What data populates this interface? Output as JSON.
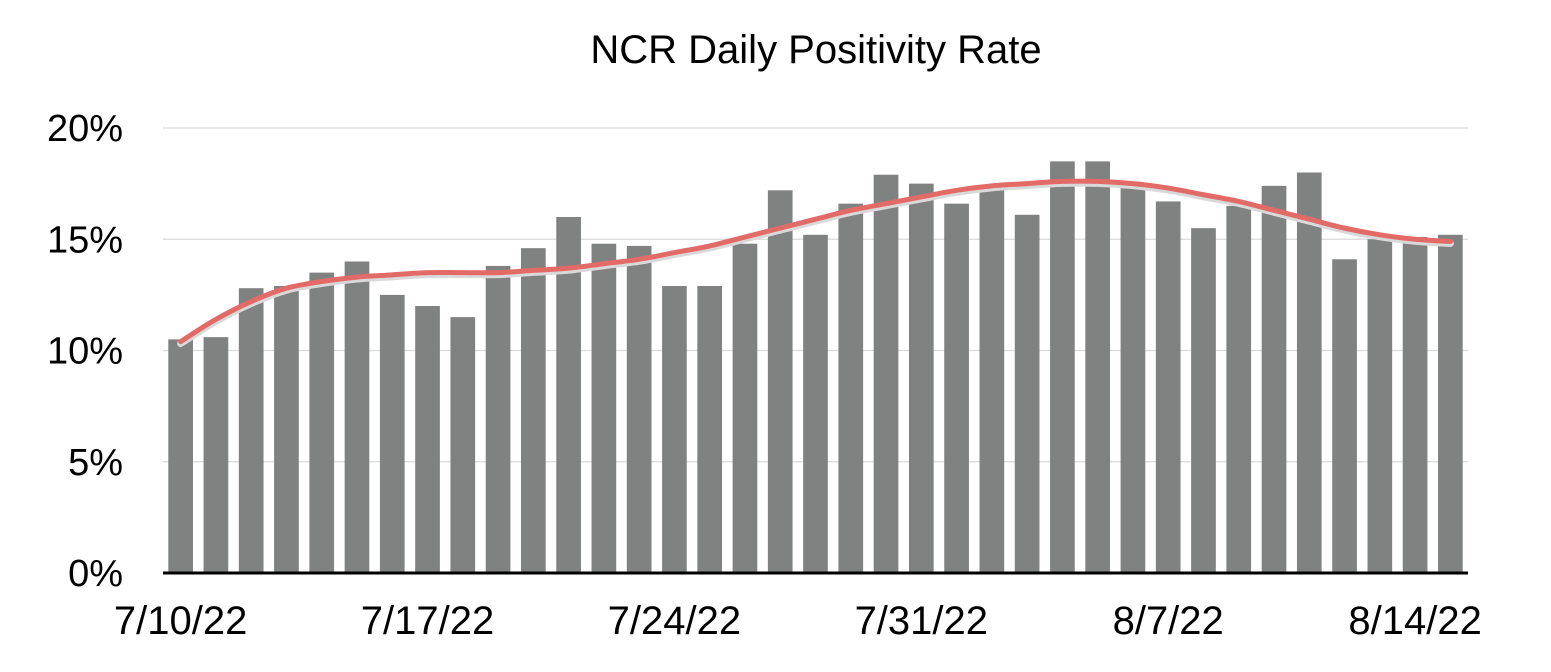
{
  "colors": {
    "bar": "#808281",
    "trend": "#e36b67",
    "grid": "#d9d9d9",
    "axis": "#000000",
    "text": "#000000"
  },
  "chart_data": {
    "type": "bar",
    "title": "NCR Daily Positivity Rate",
    "xlabel": "",
    "ylabel": "",
    "ylim": [
      0,
      20
    ],
    "y_unit": "%",
    "y_ticks": [
      "0%",
      "5%",
      "10%",
      "15%",
      "20%"
    ],
    "x_tick_labels": [
      "7/10/22",
      "7/17/22",
      "7/24/22",
      "7/31/22",
      "8/7/22",
      "8/14/22"
    ],
    "grid": true,
    "legend": "none",
    "categories": [
      "7/10/22",
      "7/11/22",
      "7/12/22",
      "7/13/22",
      "7/14/22",
      "7/15/22",
      "7/16/22",
      "7/17/22",
      "7/18/22",
      "7/19/22",
      "7/20/22",
      "7/21/22",
      "7/22/22",
      "7/23/22",
      "7/24/22",
      "7/25/22",
      "7/26/22",
      "7/27/22",
      "7/28/22",
      "7/29/22",
      "7/30/22",
      "7/31/22",
      "8/1/22",
      "8/2/22",
      "8/3/22",
      "8/4/22",
      "8/5/22",
      "8/6/22",
      "8/7/22",
      "8/8/22",
      "8/9/22",
      "8/10/22",
      "8/11/22",
      "8/12/22",
      "8/13/22",
      "8/14/22",
      "8/15/22"
    ],
    "values": [
      10.5,
      10.6,
      12.8,
      12.9,
      13.5,
      14.0,
      12.5,
      12.0,
      11.5,
      13.8,
      14.6,
      16.0,
      14.8,
      14.7,
      12.9,
      12.9,
      14.8,
      17.2,
      15.2,
      16.6,
      17.9,
      17.5,
      16.6,
      17.3,
      16.1,
      18.5,
      18.5,
      17.5,
      16.7,
      15.5,
      16.5,
      17.4,
      18.0,
      14.1,
      15.0,
      15.1,
      15.2
    ],
    "trend": {
      "type": "polynomial",
      "values": [
        10.4,
        11.4,
        12.2,
        12.8,
        13.1,
        13.3,
        13.4,
        13.5,
        13.5,
        13.5,
        13.6,
        13.7,
        13.9,
        14.1,
        14.4,
        14.7,
        15.1,
        15.5,
        15.9,
        16.3,
        16.6,
        16.9,
        17.2,
        17.4,
        17.5,
        17.6,
        17.6,
        17.5,
        17.3,
        17.0,
        16.7,
        16.3,
        15.9,
        15.5,
        15.2,
        15.0,
        14.9
      ]
    }
  }
}
